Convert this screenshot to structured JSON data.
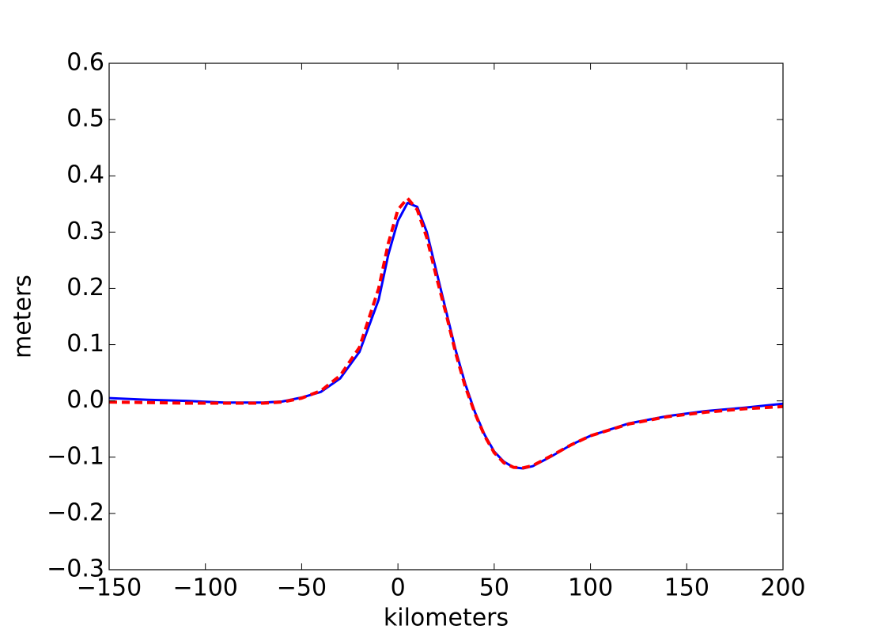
{
  "chart_data": {
    "type": "line",
    "xlabel": "kilometers",
    "ylabel": "meters",
    "xlim": [
      -150,
      200
    ],
    "ylim": [
      -0.3,
      0.6
    ],
    "xticks": [
      {
        "value": -150,
        "label": "−150"
      },
      {
        "value": -100,
        "label": "−100"
      },
      {
        "value": -50,
        "label": "−50"
      },
      0,
      50,
      100,
      150,
      200
    ],
    "yticks": [
      {
        "value": -0.3,
        "label": "−0.3"
      },
      {
        "value": -0.2,
        "label": "−0.2"
      },
      {
        "value": -0.1,
        "label": "−0.1"
      },
      {
        "value": 0,
        "label": "0.0"
      },
      0.1,
      0.2,
      0.3,
      0.4,
      0.5,
      0.6
    ],
    "grid": false,
    "x": [
      -150,
      -130,
      -110,
      -90,
      -70,
      -60,
      -50,
      -40,
      -30,
      -20,
      -10,
      -5,
      0,
      5,
      10,
      15,
      20,
      25,
      30,
      35,
      40,
      45,
      50,
      55,
      60,
      65,
      70,
      80,
      90,
      100,
      120,
      140,
      160,
      180,
      200
    ],
    "series": [
      {
        "color": "#0000ff",
        "linestyle": "solid",
        "values": [
          0.005,
          0.002,
          0,
          -0.003,
          -0.003,
          -0.001,
          0.006,
          0.016,
          0.04,
          0.087,
          0.18,
          0.26,
          0.32,
          0.352,
          0.345,
          0.3,
          0.23,
          0.16,
          0.09,
          0.03,
          -0.02,
          -0.06,
          -0.09,
          -0.108,
          -0.118,
          -0.12,
          -0.116,
          -0.098,
          -0.078,
          -0.062,
          -0.04,
          -0.027,
          -0.018,
          -0.012,
          -0.005
        ]
      },
      {
        "color": "#ff0000",
        "linestyle": "dashed",
        "values": [
          -0.002,
          -0.003,
          -0.004,
          -0.004,
          -0.004,
          -0.002,
          0.005,
          0.018,
          0.045,
          0.095,
          0.2,
          0.28,
          0.34,
          0.36,
          0.34,
          0.29,
          0.22,
          0.155,
          0.085,
          0.025,
          -0.022,
          -0.062,
          -0.092,
          -0.11,
          -0.118,
          -0.119,
          -0.115,
          -0.097,
          -0.078,
          -0.062,
          -0.041,
          -0.028,
          -0.02,
          -0.014,
          -0.01
        ]
      }
    ]
  }
}
